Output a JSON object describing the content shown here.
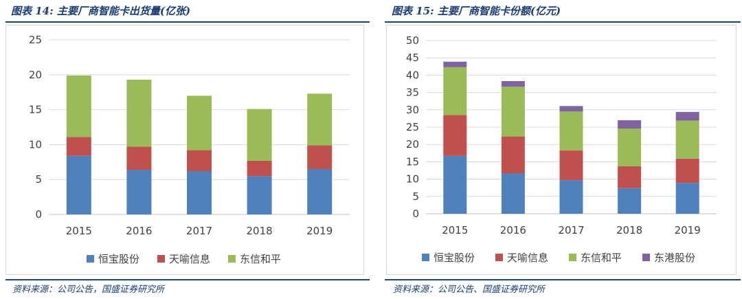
{
  "left": {
    "figure_title": "图表 14: 主要厂商智能卡出货量(亿张)",
    "source": "资料来源：公司公告，国盛证券研究所"
  },
  "right": {
    "figure_title": "图表 15: 主要厂商智能卡份额(亿元)",
    "source": "资料来源：公司公告、国盛证券研究所"
  },
  "colors": {
    "恒宝股份": "#4f81bd",
    "天喻信息": "#c0504d",
    "东信和平": "#9bbb59",
    "东港股份": "#8064a2",
    "rule": "#1f3f77"
  },
  "chart_data": [
    {
      "type": "bar",
      "stacked": true,
      "title": "主要厂商智能卡出货量(亿张)",
      "categories": [
        "2015",
        "2016",
        "2017",
        "2018",
        "2019"
      ],
      "series": [
        {
          "name": "恒宝股份",
          "values": [
            8.4,
            6.4,
            6.2,
            5.5,
            6.5
          ]
        },
        {
          "name": "天喻信息",
          "values": [
            2.7,
            3.3,
            3.0,
            2.2,
            3.4
          ]
        },
        {
          "name": "东信和平",
          "values": [
            8.8,
            9.6,
            7.8,
            7.4,
            7.4
          ]
        }
      ],
      "ylim": [
        0,
        25
      ],
      "yticks": [
        0,
        5,
        10,
        15,
        20,
        25
      ],
      "grid": true,
      "legend": "bottom",
      "xlabel": "",
      "ylabel": ""
    },
    {
      "type": "bar",
      "stacked": true,
      "title": "主要厂商智能卡份额(亿元)",
      "categories": [
        "2015",
        "2016",
        "2017",
        "2018",
        "2019"
      ],
      "series": [
        {
          "name": "恒宝股份",
          "values": [
            16.7,
            11.7,
            9.7,
            7.4,
            8.9
          ]
        },
        {
          "name": "天喻信息",
          "values": [
            11.8,
            10.6,
            8.6,
            6.3,
            7.0
          ]
        },
        {
          "name": "东信和平",
          "values": [
            13.8,
            14.4,
            11.2,
            10.9,
            11.0
          ]
        },
        {
          "name": "东港股份",
          "values": [
            1.6,
            1.6,
            1.6,
            2.4,
            2.5
          ]
        }
      ],
      "ylim": [
        0,
        50
      ],
      "yticks": [
        0,
        5,
        10,
        15,
        20,
        25,
        30,
        35,
        40,
        45,
        50
      ],
      "grid": true,
      "legend": "bottom",
      "xlabel": "",
      "ylabel": ""
    }
  ]
}
